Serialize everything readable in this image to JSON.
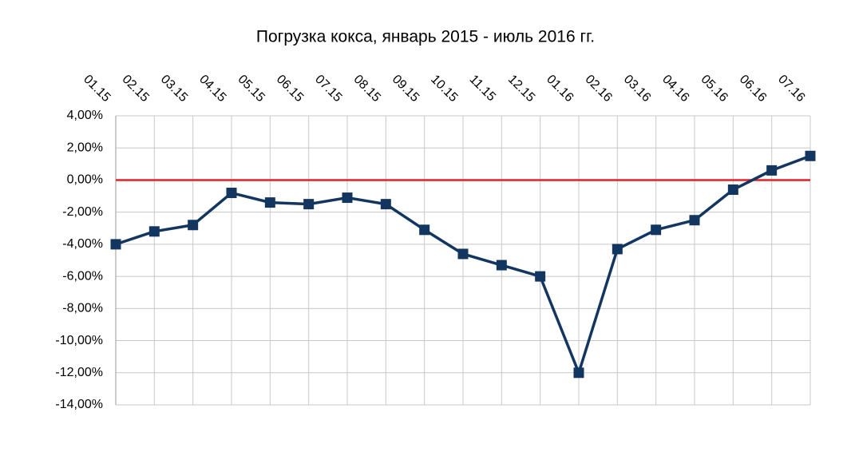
{
  "chart_data": {
    "type": "line",
    "title": "Погрузка кокса, январь 2015 - июль 2016 гг.",
    "categories": [
      "01.15",
      "02.15",
      "03.15",
      "04.15",
      "05.15",
      "06.15",
      "07.15",
      "08.15",
      "09.15",
      "10.15",
      "11.15",
      "12.15",
      "01.16",
      "02.16",
      "03.16",
      "04.16",
      "05.16",
      "06.16",
      "07.16"
    ],
    "series": [
      {
        "color": "#12365f",
        "values": [
          -4.0,
          -3.2,
          -2.8,
          -0.8,
          -1.4,
          -1.5,
          -1.1,
          -1.5,
          -3.1,
          -4.6,
          -5.3,
          -6.0,
          -12.0,
          -4.3,
          -3.1,
          -2.5,
          -0.6,
          0.6,
          1.5
        ]
      }
    ],
    "ylim": [
      -14,
      4
    ],
    "yticks": [
      {
        "value": -14,
        "label": "-14,00%"
      },
      {
        "value": -12,
        "label": "-12,00%"
      },
      {
        "value": -10,
        "label": "-10,00%"
      },
      {
        "value": -8,
        "label": "-8,00%"
      },
      {
        "value": -6,
        "label": "-6,00%"
      },
      {
        "value": -4,
        "label": "-4,00%"
      },
      {
        "value": -2,
        "label": "-2,00%"
      },
      {
        "value": 0,
        "label": "0,00%"
      },
      {
        "value": 2,
        "label": "2,00%"
      },
      {
        "value": 4,
        "label": "4,00%"
      }
    ],
    "grid": true,
    "reference_line": {
      "value": 0,
      "color": "#e3202a"
    }
  }
}
